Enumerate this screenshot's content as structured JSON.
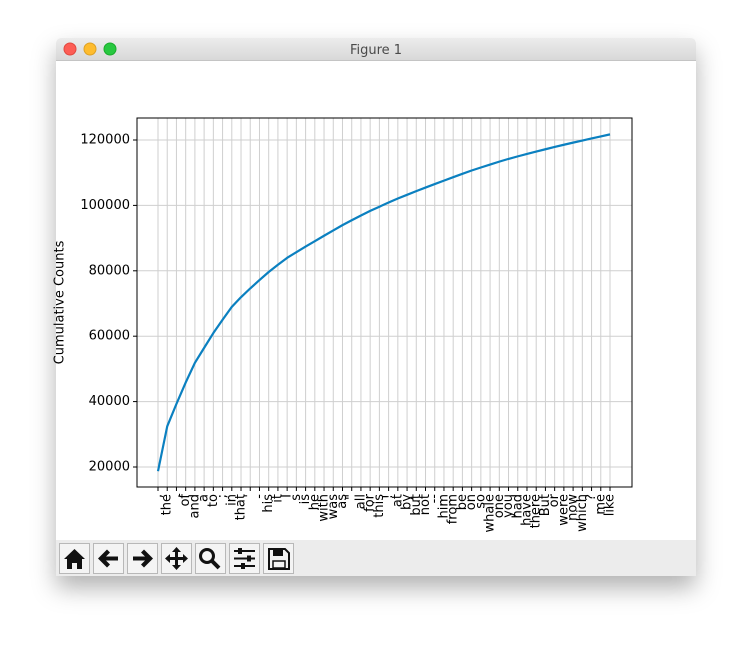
{
  "window": {
    "title": "Figure 1"
  },
  "chart_data": {
    "type": "line",
    "ylabel": "Cumulative Counts",
    "categories": [
      ",",
      "the",
      ".",
      "of",
      "and",
      "a",
      "to",
      ";",
      "in",
      "that",
      "'",
      "-",
      "his",
      "it",
      "I",
      "s",
      "is",
      "he",
      "with",
      "was",
      "as",
      "\"",
      "all",
      "for",
      "this",
      "!",
      "at",
      "by",
      "but",
      "not",
      "--",
      "him",
      "from",
      "be",
      "on",
      "so",
      "whale",
      "one",
      "you",
      "had",
      "have",
      "there",
      "But",
      "or",
      "were",
      "now",
      "which",
      "?",
      "me",
      "like"
    ],
    "values": [
      18713,
      32434,
      39296,
      45832,
      51856,
      56425,
      60967,
      65039,
      68955,
      71937,
      74621,
      77173,
      79632,
      81841,
      83965,
      85704,
      87399,
      89060,
      90719,
      92351,
      93971,
      95449,
      96911,
      98325,
      99605,
      100874,
      102105,
      103242,
      104355,
      105458,
      106528,
      107586,
      108638,
      109668,
      110673,
      111591,
      112497,
      113386,
      114227,
      114994,
      115754,
      116469,
      117174,
      117871,
      118551,
      119197,
      119837,
      120474,
      121101,
      121725
    ],
    "color": "#0b80c0",
    "ylim": [
      13880,
      126730
    ],
    "yticks": [
      20000,
      40000,
      60000,
      80000,
      100000,
      120000
    ],
    "grid": true
  }
}
